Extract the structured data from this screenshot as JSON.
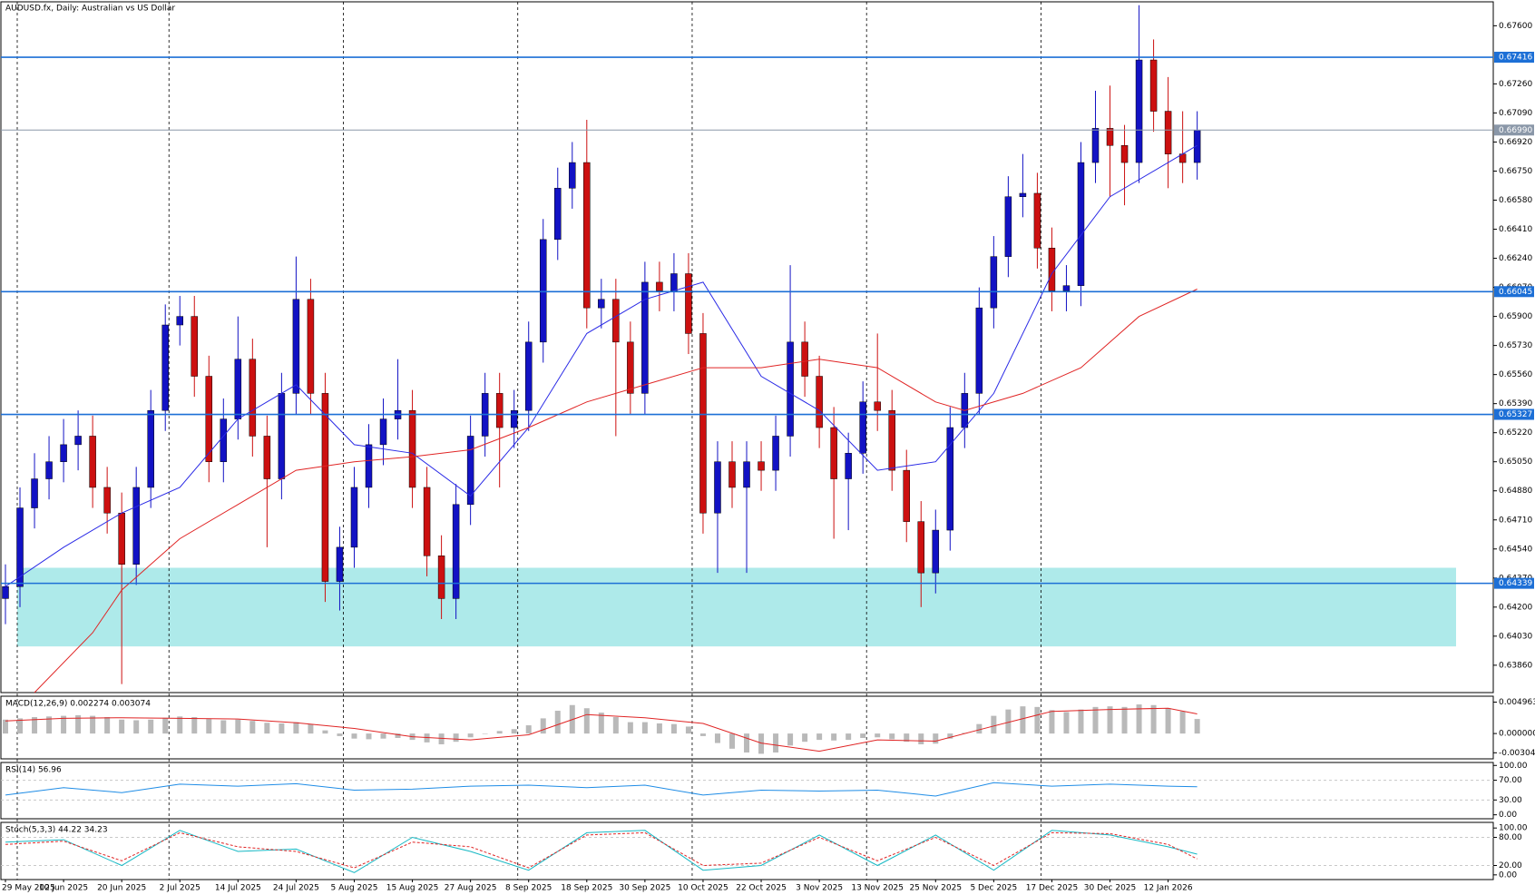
{
  "chart_data": {
    "type": "candlestick",
    "title": "AUDUSD.fx, Daily:  Australian vs US Dollar",
    "x_labels": [
      "29 May 2025",
      "10 Jun 2025",
      "20 Jun 2025",
      "2 Jul 2025",
      "14 Jul 2025",
      "24 Jul 2025",
      "5 Aug 2025",
      "15 Aug 2025",
      "27 Aug 2025",
      "8 Sep 2025",
      "18 Sep 2025",
      "30 Sep 2025",
      "10 Oct 2025",
      "22 Oct 2025",
      "3 Nov 2025",
      "13 Nov 2025",
      "25 Nov 2025",
      "5 Dec 2025",
      "17 Dec 2025",
      "30 Dec 2025",
      "12 Jan 2026"
    ],
    "ohlc": [
      [
        0.6425,
        0.6445,
        0.641,
        0.6432
      ],
      [
        0.6432,
        0.649,
        0.642,
        0.6478
      ],
      [
        0.6478,
        0.651,
        0.6466,
        0.6495
      ],
      [
        0.6495,
        0.652,
        0.6483,
        0.6505
      ],
      [
        0.6505,
        0.653,
        0.6493,
        0.6515
      ],
      [
        0.6515,
        0.6535,
        0.65,
        0.652
      ],
      [
        0.652,
        0.6532,
        0.6478,
        0.649
      ],
      [
        0.649,
        0.6502,
        0.6463,
        0.6475
      ],
      [
        0.6475,
        0.6487,
        0.6375,
        0.6445
      ],
      [
        0.6445,
        0.6502,
        0.6433,
        0.649
      ],
      [
        0.649,
        0.6547,
        0.6478,
        0.6535
      ],
      [
        0.6535,
        0.6597,
        0.6523,
        0.6585
      ],
      [
        0.6585,
        0.6602,
        0.6573,
        0.659
      ],
      [
        0.659,
        0.6602,
        0.6543,
        0.6555
      ],
      [
        0.6555,
        0.6567,
        0.6493,
        0.6505
      ],
      [
        0.6505,
        0.6542,
        0.6493,
        0.653
      ],
      [
        0.653,
        0.659,
        0.6518,
        0.6565
      ],
      [
        0.6565,
        0.6577,
        0.6508,
        0.652
      ],
      [
        0.652,
        0.6532,
        0.6455,
        0.6495
      ],
      [
        0.6495,
        0.6557,
        0.6483,
        0.6545
      ],
      [
        0.6545,
        0.6625,
        0.6533,
        0.66
      ],
      [
        0.66,
        0.6612,
        0.6533,
        0.6545
      ],
      [
        0.6545,
        0.6557,
        0.6423,
        0.6435
      ],
      [
        0.6435,
        0.6467,
        0.6418,
        0.6455
      ],
      [
        0.6455,
        0.6502,
        0.6443,
        0.649
      ],
      [
        0.649,
        0.6527,
        0.6478,
        0.6515
      ],
      [
        0.6515,
        0.6542,
        0.6503,
        0.653
      ],
      [
        0.653,
        0.6565,
        0.6518,
        0.6535
      ],
      [
        0.6535,
        0.6547,
        0.6478,
        0.649
      ],
      [
        0.649,
        0.6502,
        0.6438,
        0.645
      ],
      [
        0.645,
        0.6462,
        0.6413,
        0.6425
      ],
      [
        0.6425,
        0.6492,
        0.6413,
        0.648
      ],
      [
        0.648,
        0.6532,
        0.6468,
        0.652
      ],
      [
        0.652,
        0.6557,
        0.6508,
        0.6545
      ],
      [
        0.6545,
        0.6557,
        0.649,
        0.6525
      ],
      [
        0.6525,
        0.6547,
        0.6513,
        0.6535
      ],
      [
        0.6535,
        0.6587,
        0.6523,
        0.6575
      ],
      [
        0.6575,
        0.6647,
        0.6563,
        0.6635
      ],
      [
        0.6635,
        0.6677,
        0.6623,
        0.6665
      ],
      [
        0.6665,
        0.6692,
        0.6653,
        0.668
      ],
      [
        0.668,
        0.6705,
        0.6583,
        0.6595
      ],
      [
        0.6595,
        0.6612,
        0.6583,
        0.66
      ],
      [
        0.66,
        0.6612,
        0.652,
        0.6575
      ],
      [
        0.6575,
        0.6587,
        0.6533,
        0.6545
      ],
      [
        0.6545,
        0.6622,
        0.6533,
        0.661
      ],
      [
        0.661,
        0.6622,
        0.6593,
        0.6605
      ],
      [
        0.6605,
        0.6627,
        0.6593,
        0.6615
      ],
      [
        0.6615,
        0.6627,
        0.6568,
        0.658
      ],
      [
        0.658,
        0.6592,
        0.6463,
        0.6475
      ],
      [
        0.6475,
        0.6517,
        0.644,
        0.6505
      ],
      [
        0.6505,
        0.6517,
        0.6478,
        0.649
      ],
      [
        0.649,
        0.6517,
        0.644,
        0.6505
      ],
      [
        0.6505,
        0.6517,
        0.6488,
        0.65
      ],
      [
        0.65,
        0.6532,
        0.6488,
        0.652
      ],
      [
        0.652,
        0.662,
        0.6508,
        0.6575
      ],
      [
        0.6575,
        0.6587,
        0.6543,
        0.6555
      ],
      [
        0.6555,
        0.6567,
        0.6513,
        0.6525
      ],
      [
        0.6525,
        0.6537,
        0.646,
        0.6495
      ],
      [
        0.6495,
        0.6522,
        0.6465,
        0.651
      ],
      [
        0.651,
        0.6552,
        0.6498,
        0.654
      ],
      [
        0.654,
        0.658,
        0.6523,
        0.6535
      ],
      [
        0.6535,
        0.6547,
        0.6488,
        0.65
      ],
      [
        0.65,
        0.6512,
        0.6458,
        0.647
      ],
      [
        0.647,
        0.6482,
        0.642,
        0.644
      ],
      [
        0.644,
        0.6477,
        0.6428,
        0.6465
      ],
      [
        0.6465,
        0.6537,
        0.6453,
        0.6525
      ],
      [
        0.6525,
        0.6557,
        0.6513,
        0.6545
      ],
      [
        0.6545,
        0.6607,
        0.6533,
        0.6595
      ],
      [
        0.6595,
        0.6637,
        0.6583,
        0.6625
      ],
      [
        0.6625,
        0.6672,
        0.6613,
        0.666
      ],
      [
        0.666,
        0.6685,
        0.6648,
        0.6662
      ],
      [
        0.6662,
        0.6674,
        0.6618,
        0.663
      ],
      [
        0.663,
        0.6642,
        0.6593,
        0.6605
      ],
      [
        0.6605,
        0.662,
        0.6593,
        0.6608
      ],
      [
        0.6608,
        0.6692,
        0.6596,
        0.668
      ],
      [
        0.668,
        0.6722,
        0.6668,
        0.67
      ],
      [
        0.67,
        0.6725,
        0.666,
        0.669
      ],
      [
        0.669,
        0.6702,
        0.6655,
        0.668
      ],
      [
        0.668,
        0.6772,
        0.6668,
        0.674
      ],
      [
        0.674,
        0.6752,
        0.6698,
        0.671
      ],
      [
        0.671,
        0.673,
        0.6665,
        0.6685
      ],
      [
        0.6685,
        0.671,
        0.6668,
        0.668
      ],
      [
        0.668,
        0.671,
        0.667,
        0.6699
      ]
    ],
    "up_color": "#1212c4",
    "down_color": "#cc1010",
    "ylim": [
      0.637,
      0.6774
    ],
    "yticks": [
      {
        "value": 0.676,
        "label": "0.67600"
      },
      {
        "value": 0.6726,
        "label": "0.67260"
      },
      {
        "value": 0.6709,
        "label": "0.67090"
      },
      {
        "value": 0.6692,
        "label": "0.66920"
      },
      {
        "value": 0.6675,
        "label": "0.66750"
      },
      {
        "value": 0.6658,
        "label": "0.66580"
      },
      {
        "value": 0.6641,
        "label": "0.66410"
      },
      {
        "value": 0.6624,
        "label": "0.66240"
      },
      {
        "value": 0.6607,
        "label": "0.66070"
      },
      {
        "value": 0.659,
        "label": "0.65900"
      },
      {
        "value": 0.6573,
        "label": "0.65730"
      },
      {
        "value": 0.6556,
        "label": "0.65560"
      },
      {
        "value": 0.6539,
        "label": "0.65390"
      },
      {
        "value": 0.6522,
        "label": "0.65220"
      },
      {
        "value": 0.6505,
        "label": "0.65050"
      },
      {
        "value": 0.6488,
        "label": "0.64880"
      },
      {
        "value": 0.6471,
        "label": "0.64710"
      },
      {
        "value": 0.6454,
        "label": "0.64540"
      },
      {
        "value": 0.6437,
        "label": "0.64370"
      },
      {
        "value": 0.642,
        "label": "0.64200"
      },
      {
        "value": 0.6403,
        "label": "0.64030"
      },
      {
        "value": 0.6386,
        "label": "0.63860"
      }
    ],
    "levels": [
      {
        "value": 0.67416,
        "label": "0.67416",
        "color": "#1c6fd6"
      },
      {
        "value": 0.6699,
        "label": "0.66990",
        "color": "#8a97a8"
      },
      {
        "value": 0.66045,
        "label": "0.66045",
        "color": "#1c6fd6"
      },
      {
        "value": 0.65327,
        "label": "0.65327",
        "color": "#1c6fd6"
      },
      {
        "value": 0.64339,
        "label": "0.64339",
        "color": "#1c6fd6"
      }
    ],
    "zone": {
      "from": 0.6397,
      "to": 0.6443,
      "color": "#aeeaea"
    },
    "ma": [
      {
        "color": "#2a2ae6",
        "x": [
          0,
          4,
          8,
          12,
          16,
          20,
          24,
          28,
          32,
          36,
          40,
          44,
          48,
          52,
          56,
          60,
          64,
          68,
          72,
          76,
          80,
          82
        ],
        "values": [
          0.6432,
          0.6455,
          0.6475,
          0.649,
          0.653,
          0.655,
          0.6515,
          0.651,
          0.6485,
          0.6525,
          0.658,
          0.66,
          0.661,
          0.6555,
          0.6535,
          0.65,
          0.6505,
          0.6545,
          0.6615,
          0.666,
          0.668,
          0.669
        ]
      },
      {
        "color": "#e02424",
        "x": [
          2,
          6,
          8,
          12,
          16,
          20,
          24,
          28,
          32,
          36,
          40,
          44,
          48,
          52,
          56,
          60,
          64,
          66,
          70,
          74,
          78,
          82
        ],
        "values": [
          0.637,
          0.6405,
          0.643,
          0.646,
          0.648,
          0.65,
          0.6505,
          0.6508,
          0.6512,
          0.6525,
          0.654,
          0.655,
          0.656,
          0.656,
          0.6565,
          0.656,
          0.654,
          0.6535,
          0.6545,
          0.656,
          0.659,
          0.6606
        ]
      }
    ],
    "grid": true,
    "macd": {
      "title": "MACD(12,26,9) 0.002274 0.003074",
      "hist_color": "#b9b9b9",
      "histogram": [
        0.0022,
        0.0024,
        0.0026,
        0.0027,
        0.0028,
        0.0029,
        0.0028,
        0.0026,
        0.0022,
        0.0021,
        0.0022,
        0.0025,
        0.0027,
        0.0026,
        0.0023,
        0.0021,
        0.0022,
        0.002,
        0.0017,
        0.0016,
        0.0018,
        0.0015,
        0.0005,
        -0.0004,
        -0.0008,
        -0.0009,
        -0.0008,
        -0.0007,
        -0.001,
        -0.0014,
        -0.0017,
        -0.0013,
        -0.0006,
        0,
        0.0004,
        0.0007,
        0.0013,
        0.0024,
        0.0036,
        0.0045,
        0.004,
        0.0033,
        0.0026,
        0.0018,
        0.0018,
        0.0016,
        0.0015,
        0.0011,
        -0.0004,
        -0.0015,
        -0.0024,
        -0.003,
        -0.0032,
        -0.003,
        -0.0019,
        -0.0013,
        -0.001,
        -0.0011,
        -0.001,
        -0.0007,
        -0.0006,
        -0.0009,
        -0.0013,
        -0.0017,
        -0.0016,
        -0.0008,
        0.0001,
        0.0015,
        0.0028,
        0.0038,
        0.0043,
        0.0042,
        0.0037,
        0.0034,
        0.0038,
        0.0042,
        0.0043,
        0.0042,
        0.0046,
        0.0045,
        0.004,
        0.0035,
        0.0023
      ],
      "signal": {
        "color": "#e02424",
        "x": [
          0,
          4,
          8,
          12,
          16,
          20,
          24,
          28,
          32,
          36,
          40,
          44,
          48,
          52,
          56,
          60,
          64,
          68,
          72,
          76,
          80,
          82
        ],
        "values": [
          0.002,
          0.0024,
          0.0025,
          0.0024,
          0.0023,
          0.0017,
          0.0008,
          -0.0005,
          -0.001,
          -0.0002,
          0.003,
          0.0025,
          0.0016,
          -0.0015,
          -0.0028,
          -0.001,
          -0.0012,
          0.0012,
          0.0035,
          0.0038,
          0.004,
          0.0031
        ]
      },
      "ylim": [
        -0.004,
        0.0059
      ],
      "yticks": [
        0.004963,
        {
          "value": 0,
          "label": "0.000000"
        },
        -0.003042
      ]
    },
    "rsi": {
      "title": "RSI(14) 56.96",
      "color": "#1e8ce6",
      "x": [
        0,
        4,
        8,
        12,
        16,
        20,
        24,
        28,
        32,
        36,
        40,
        44,
        48,
        52,
        56,
        60,
        64,
        68,
        72,
        76,
        80,
        82
      ],
      "values": [
        40,
        55,
        45,
        62,
        58,
        63,
        50,
        52,
        58,
        60,
        55,
        60,
        40,
        50,
        48,
        50,
        38,
        65,
        58,
        62,
        58,
        56.96
      ],
      "ylim": [
        -8,
        106
      ],
      "yticks": [
        {
          "value": 100,
          "label": "100.00"
        },
        {
          "value": 70,
          "label": "70.00"
        },
        {
          "value": 30,
          "label": "30.00"
        },
        {
          "value": 0,
          "label": "0.00"
        }
      ],
      "levels": [
        70,
        30
      ]
    },
    "stoch": {
      "title": "Stoch(5,3,3) 44.22 34.23",
      "main": {
        "color": "#16b8c4",
        "x": [
          0,
          4,
          8,
          12,
          16,
          20,
          24,
          28,
          32,
          36,
          40,
          44,
          48,
          52,
          56,
          60,
          64,
          68,
          72,
          76,
          80,
          82
        ],
        "values": [
          70,
          75,
          20,
          95,
          50,
          55,
          5,
          80,
          50,
          10,
          90,
          95,
          10,
          20,
          85,
          20,
          85,
          10,
          95,
          85,
          60,
          44.22
        ]
      },
      "signal": {
        "color": "#e02424",
        "x": [
          0,
          4,
          8,
          12,
          16,
          20,
          24,
          28,
          32,
          36,
          40,
          44,
          48,
          52,
          56,
          60,
          64,
          68,
          72,
          76,
          80,
          82
        ],
        "values": [
          65,
          72,
          30,
          90,
          60,
          50,
          15,
          70,
          60,
          15,
          85,
          90,
          20,
          25,
          80,
          30,
          80,
          20,
          90,
          88,
          65,
          34.23
        ]
      },
      "ylim": [
        -10,
        112
      ],
      "yticks": [
        {
          "value": 100,
          "label": "100.00"
        },
        {
          "value": 80,
          "label": "80.00"
        },
        {
          "value": 20,
          "label": "20.00"
        },
        {
          "value": 0,
          "label": "0.00"
        }
      ],
      "levels": [
        80,
        20
      ]
    }
  }
}
